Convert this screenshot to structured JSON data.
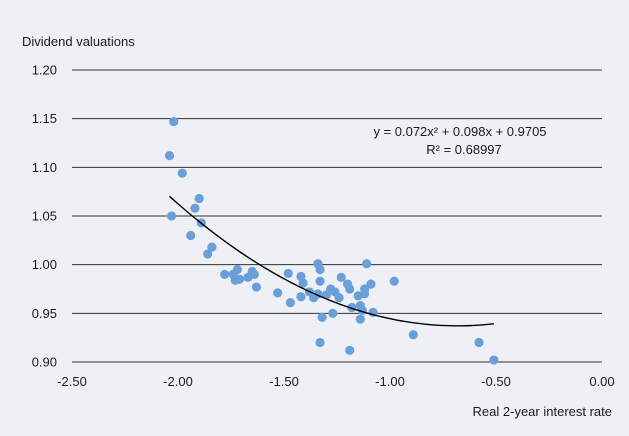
{
  "chart_data": {
    "type": "scatter",
    "title": "",
    "ylabel": "Dividend valuations",
    "xlabel": "Real 2-year interest rate",
    "xlim": [
      -2.5,
      0.0
    ],
    "ylim": [
      0.9,
      1.2
    ],
    "x_ticks": [
      "-2.50",
      "-2.00",
      "-1.50",
      "-1.00",
      "-0.50",
      "0.00"
    ],
    "y_ticks": [
      "0.90",
      "0.95",
      "1.00",
      "1.05",
      "1.10",
      "1.15",
      "1.20"
    ],
    "grid": "horizontal",
    "legend": "none",
    "colors": {
      "points": "#6a9fd8",
      "trend": "#000000",
      "background": "#eef0f5",
      "grid": "#333333"
    },
    "series": [
      {
        "values": [
          [
            -2.02,
            1.147
          ],
          [
            -2.04,
            1.112
          ],
          [
            -1.98,
            1.094
          ],
          [
            -2.03,
            1.05
          ],
          [
            -1.92,
            1.058
          ],
          [
            -1.9,
            1.068
          ],
          [
            -1.89,
            1.043
          ],
          [
            -1.94,
            1.03
          ],
          [
            -1.84,
            1.018
          ],
          [
            -1.86,
            1.011
          ],
          [
            -1.78,
            0.99
          ],
          [
            -1.74,
            0.99
          ],
          [
            -1.72,
            0.995
          ],
          [
            -1.73,
            0.984
          ],
          [
            -1.71,
            0.985
          ],
          [
            -1.67,
            0.987
          ],
          [
            -1.65,
            0.993
          ],
          [
            -1.64,
            0.99
          ],
          [
            -1.63,
            0.977
          ],
          [
            -1.53,
            0.971
          ],
          [
            -1.48,
            0.991
          ],
          [
            -1.47,
            0.961
          ],
          [
            -1.42,
            0.988
          ],
          [
            -1.41,
            0.981
          ],
          [
            -1.42,
            0.967
          ],
          [
            -1.38,
            0.972
          ],
          [
            -1.36,
            0.966
          ],
          [
            -1.34,
            1.001
          ],
          [
            -1.33,
            0.995
          ],
          [
            -1.33,
            0.983
          ],
          [
            -1.34,
            0.97
          ],
          [
            -1.32,
            0.946
          ],
          [
            -1.33,
            0.92
          ],
          [
            -1.3,
            0.969
          ],
          [
            -1.28,
            0.975
          ],
          [
            -1.27,
            0.95
          ],
          [
            -1.26,
            0.972
          ],
          [
            -1.24,
            0.966
          ],
          [
            -1.23,
            0.987
          ],
          [
            -1.2,
            0.98
          ],
          [
            -1.19,
            0.975
          ],
          [
            -1.18,
            0.956
          ],
          [
            -1.19,
            0.912
          ],
          [
            -1.15,
            0.968
          ],
          [
            -1.14,
            0.958
          ],
          [
            -1.14,
            0.944
          ],
          [
            -1.13,
            0.953
          ],
          [
            -1.12,
            0.975
          ],
          [
            -1.11,
            1.001
          ],
          [
            -1.09,
            0.98
          ],
          [
            -1.08,
            0.951
          ],
          [
            -0.98,
            0.983
          ],
          [
            -0.89,
            0.928
          ],
          [
            -0.58,
            0.92
          ],
          [
            -0.51,
            0.902
          ],
          [
            -1.12,
            0.97
          ]
        ]
      }
    ],
    "trendline": {
      "type": "polynomial",
      "order": 2,
      "coefficients": [
        0.072,
        0.098,
        0.9705
      ],
      "x_range": [
        -2.04,
        -0.51
      ],
      "equation": "y = 0.072x² + 0.098x + 0.9705",
      "r_squared": "R² = 0.68997"
    }
  }
}
